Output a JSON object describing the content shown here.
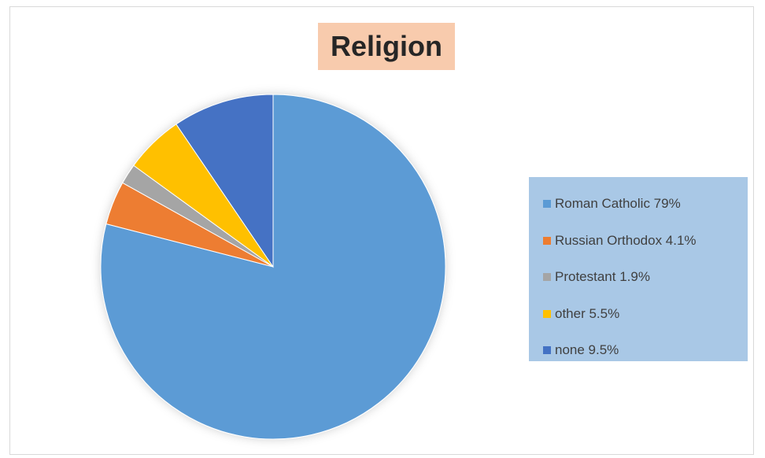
{
  "chart_data": {
    "type": "pie",
    "title": "Religion",
    "categories": [
      "Roman Catholic",
      "Russian Orthodox",
      "Protestant",
      "other",
      "none"
    ],
    "values": [
      79,
      4.1,
      1.9,
      5.5,
      9.5
    ],
    "legend_labels": [
      "Roman Catholic 79%",
      "Russian Orthodox 4.1%",
      "Protestant 1.9%",
      "other 5.5%",
      "none 9.5%"
    ],
    "colors": [
      "#5b9bd5",
      "#ed7d31",
      "#a5a5a5",
      "#ffc000",
      "#4472c4"
    ],
    "legend_position": "right",
    "title_background": "#f8cbad",
    "legend_background": "#a9c8e6"
  }
}
